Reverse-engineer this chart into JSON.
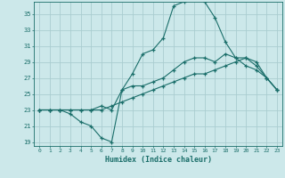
{
  "xlabel": "Humidex (Indice chaleur)",
  "bg_color": "#cce8ea",
  "line_color": "#1a6e6a",
  "grid_color": "#aacdd0",
  "xlim": [
    -0.5,
    23.5
  ],
  "ylim": [
    18.5,
    36.5
  ],
  "yticks": [
    19,
    21,
    23,
    25,
    27,
    29,
    31,
    33,
    35
  ],
  "xticks": [
    0,
    1,
    2,
    3,
    4,
    5,
    6,
    7,
    8,
    9,
    10,
    11,
    12,
    13,
    14,
    15,
    16,
    17,
    18,
    19,
    20,
    21,
    22,
    23
  ],
  "line_peak_x": [
    0,
    1,
    2,
    3,
    4,
    5,
    6,
    7,
    8,
    9,
    10,
    11,
    12,
    13,
    14,
    15,
    16,
    17,
    18,
    19,
    20,
    21,
    22,
    23
  ],
  "line_peak_y": [
    23.0,
    23.0,
    23.0,
    23.0,
    23.0,
    23.0,
    23.5,
    23.0,
    25.5,
    27.5,
    30.0,
    30.5,
    32.0,
    36.0,
    36.5,
    37.0,
    36.5,
    34.5,
    31.5,
    29.5,
    28.5,
    28.0,
    27.0,
    25.5
  ],
  "line_mid_x": [
    0,
    1,
    2,
    3,
    4,
    5,
    6,
    7,
    8,
    9,
    10,
    11,
    12,
    13,
    14,
    15,
    16,
    17,
    18,
    19,
    20,
    21,
    22,
    23
  ],
  "line_mid_y": [
    23.0,
    23.0,
    23.0,
    22.5,
    21.5,
    21.0,
    19.5,
    19.0,
    25.5,
    26.0,
    26.0,
    26.5,
    27.0,
    28.0,
    29.0,
    29.5,
    29.5,
    29.0,
    30.0,
    29.5,
    29.5,
    28.5,
    27.0,
    25.5
  ],
  "line_low_x": [
    0,
    1,
    2,
    3,
    4,
    5,
    6,
    7,
    8,
    9,
    10,
    11,
    12,
    13,
    14,
    15,
    16,
    17,
    18,
    19,
    20,
    21,
    22,
    23
  ],
  "line_low_y": [
    23.0,
    23.0,
    23.0,
    23.0,
    23.0,
    23.0,
    23.0,
    23.5,
    24.0,
    24.5,
    25.0,
    25.5,
    26.0,
    26.5,
    27.0,
    27.5,
    27.5,
    28.0,
    28.5,
    29.0,
    29.5,
    29.0,
    27.0,
    25.5
  ]
}
